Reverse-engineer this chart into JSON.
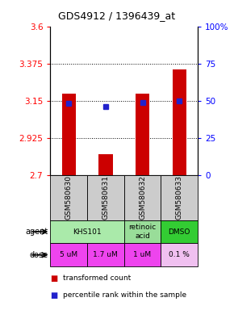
{
  "title": "GDS4912 / 1396439_at",
  "samples": [
    "GSM580630",
    "GSM580631",
    "GSM580632",
    "GSM580633"
  ],
  "bar_values": [
    3.195,
    2.825,
    3.195,
    3.34
  ],
  "bar_bottom": 2.7,
  "percentile_values": [
    3.135,
    3.115,
    3.14,
    3.148
  ],
  "ylim_left": [
    2.7,
    3.6
  ],
  "ylim_right": [
    0,
    100
  ],
  "yticks_left": [
    2.7,
    2.925,
    3.15,
    3.375,
    3.6
  ],
  "yticks_right": [
    0,
    25,
    50,
    75,
    100
  ],
  "ytick_labels_left": [
    "2.7",
    "2.925",
    "3.15",
    "3.375",
    "3.6"
  ],
  "ytick_labels_right": [
    "0",
    "25",
    "50",
    "75",
    "100%"
  ],
  "gridlines": [
    2.925,
    3.15,
    3.375
  ],
  "bar_color": "#cc0000",
  "dot_color": "#2222cc",
  "dose_labels": [
    "5 uM",
    "1.7 uM",
    "1 uM",
    "0.1 %"
  ],
  "dose_colors": [
    "#ee44ee",
    "#ee44ee",
    "#ee44ee",
    "#f0c0f0"
  ],
  "sample_bg_color": "#cccccc",
  "legend_red": "transformed count",
  "legend_blue": "percentile rank within the sample",
  "agent_groups": [
    {
      "cols": [
        0,
        1
      ],
      "label": "KHS101",
      "color": "#aaeaaa"
    },
    {
      "cols": [
        2
      ],
      "label": "retinoic\nacid",
      "color": "#99dd99"
    },
    {
      "cols": [
        3
      ],
      "label": "DMSO",
      "color": "#33cc33"
    }
  ]
}
